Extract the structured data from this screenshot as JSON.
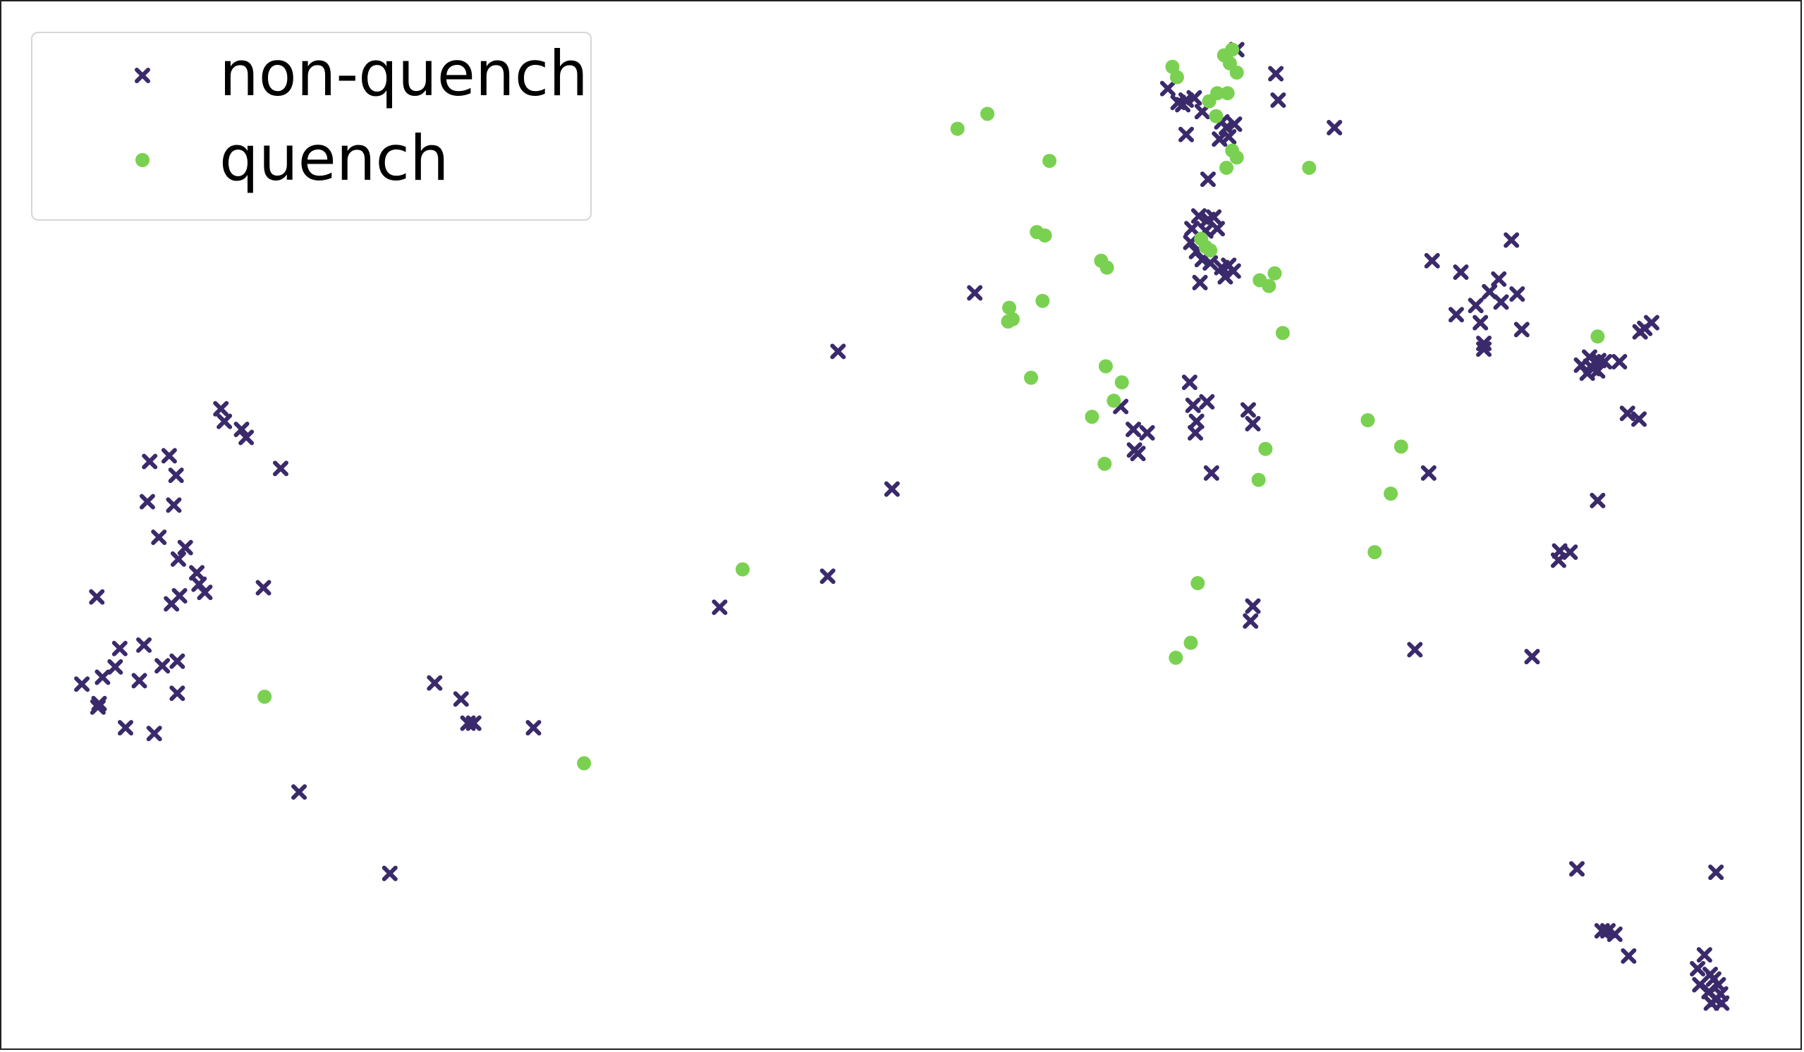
{
  "chart_data": {
    "type": "scatter",
    "title": "",
    "xlabel": "",
    "ylabel": "",
    "axes_visible": false,
    "grid": false,
    "legend_position": "top-left",
    "xlim": [
      0,
      1568
    ],
    "ylim": [
      0,
      915
    ],
    "y_inverted": true,
    "series": [
      {
        "name": "non-quench",
        "marker": "x",
        "color": "#3b2a6b",
        "points": [
          [
            191,
            355
          ],
          [
            194,
            366
          ],
          [
            209,
            373
          ],
          [
            213,
            380
          ],
          [
            243,
            407
          ],
          [
            129,
            401
          ],
          [
            146,
            396
          ],
          [
            152,
            413
          ],
          [
            127,
            436
          ],
          [
            150,
            439
          ],
          [
            137,
            467
          ],
          [
            160,
            476
          ],
          [
            154,
            486
          ],
          [
            170,
            498
          ],
          [
            172,
            508
          ],
          [
            177,
            515
          ],
          [
            155,
            518
          ],
          [
            148,
            525
          ],
          [
            228,
            511
          ],
          [
            83,
            519
          ],
          [
            103,
            564
          ],
          [
            124,
            561
          ],
          [
            153,
            575
          ],
          [
            140,
            579
          ],
          [
            99,
            580
          ],
          [
            88,
            589
          ],
          [
            120,
            592
          ],
          [
            70,
            595
          ],
          [
            153,
            603
          ],
          [
            85,
            612
          ],
          [
            84,
            615
          ],
          [
            108,
            633
          ],
          [
            133,
            638
          ],
          [
            259,
            689
          ],
          [
            338,
            760
          ],
          [
            377,
            594
          ],
          [
            400,
            608
          ],
          [
            406,
            629
          ],
          [
            411,
            629
          ],
          [
            463,
            633
          ],
          [
            625,
            528
          ],
          [
            719,
            501
          ],
          [
            775,
            425
          ],
          [
            728,
            305
          ],
          [
            847,
            254
          ],
          [
            1015,
            76
          ],
          [
            1024,
            88
          ],
          [
            1031,
            86
          ],
          [
            1038,
            84
          ],
          [
            1045,
            96
          ],
          [
            1028,
            90
          ],
          [
            1031,
            116
          ],
          [
            1062,
            105
          ],
          [
            1066,
            110
          ],
          [
            1073,
            107
          ],
          [
            1060,
            120
          ],
          [
            1068,
            118
          ],
          [
            1075,
            42
          ],
          [
            1109,
            63
          ],
          [
            1111,
            86
          ],
          [
            1160,
            110
          ],
          [
            1050,
            155
          ],
          [
            1042,
            187
          ],
          [
            1050,
            190
          ],
          [
            1055,
            188
          ],
          [
            1036,
            198
          ],
          [
            1048,
            200
          ],
          [
            1058,
            198
          ],
          [
            1035,
            210
          ],
          [
            1045,
            225
          ],
          [
            1040,
            218
          ],
          [
            1062,
            232
          ],
          [
            1068,
            230
          ],
          [
            1072,
            235
          ],
          [
            1065,
            240
          ],
          [
            1043,
            245
          ],
          [
            1052,
            228
          ],
          [
            1034,
            332
          ],
          [
            1037,
            352
          ],
          [
            1049,
            349
          ],
          [
            1040,
            366
          ],
          [
            1039,
            376
          ],
          [
            1085,
            356
          ],
          [
            1089,
            368
          ],
          [
            974,
            353
          ],
          [
            985,
            373
          ],
          [
            997,
            376
          ],
          [
            986,
            391
          ],
          [
            989,
            394
          ],
          [
            1053,
            411
          ],
          [
            1089,
            527
          ],
          [
            1087,
            540
          ],
          [
            1245,
            226
          ],
          [
            1270,
            236
          ],
          [
            1314,
            208
          ],
          [
            1303,
            242
          ],
          [
            1295,
            253
          ],
          [
            1319,
            255
          ],
          [
            1283,
            265
          ],
          [
            1305,
            262
          ],
          [
            1266,
            273
          ],
          [
            1287,
            280
          ],
          [
            1323,
            286
          ],
          [
            1290,
            298
          ],
          [
            1290,
            303
          ],
          [
            1242,
            411
          ],
          [
            1230,
            565
          ],
          [
            1332,
            571
          ],
          [
            1389,
            435
          ],
          [
            1356,
            479
          ],
          [
            1365,
            480
          ],
          [
            1355,
            487
          ],
          [
            1436,
            280
          ],
          [
            1430,
            285
          ],
          [
            1426,
            288
          ],
          [
            1375,
            317
          ],
          [
            1382,
            310
          ],
          [
            1390,
            313
          ],
          [
            1385,
            320
          ],
          [
            1380,
            324
          ],
          [
            1395,
            314
          ],
          [
            1408,
            314
          ],
          [
            1383,
            318
          ],
          [
            1389,
            322
          ],
          [
            1415,
            359
          ],
          [
            1425,
            364
          ],
          [
            1371,
            756
          ],
          [
            1492,
            759
          ],
          [
            1393,
            810
          ],
          [
            1398,
            810
          ],
          [
            1404,
            813
          ],
          [
            1416,
            832
          ],
          [
            1482,
            831
          ],
          [
            1476,
            843
          ],
          [
            1487,
            848
          ],
          [
            1490,
            852
          ],
          [
            1478,
            857
          ],
          [
            1494,
            857
          ],
          [
            1486,
            863
          ],
          [
            1496,
            865
          ],
          [
            1492,
            870
          ],
          [
            1488,
            873
          ],
          [
            1497,
            873
          ]
        ]
      },
      {
        "name": "quench",
        "marker": "o",
        "color": "#7ad151",
        "points": [
          [
            1019,
            57
          ],
          [
            1023,
            66
          ],
          [
            1064,
            47
          ],
          [
            1071,
            42
          ],
          [
            1069,
            54
          ],
          [
            1075,
            62
          ],
          [
            1058,
            80
          ],
          [
            1067,
            80
          ],
          [
            1051,
            87
          ],
          [
            1057,
            100
          ],
          [
            1071,
            130
          ],
          [
            1075,
            136
          ],
          [
            1066,
            145
          ],
          [
            832,
            111
          ],
          [
            858,
            98
          ],
          [
            912,
            139
          ],
          [
            1138,
            145
          ],
          [
            901,
            201
          ],
          [
            908,
            204
          ],
          [
            1044,
            207
          ],
          [
            1048,
            214
          ],
          [
            1052,
            217
          ],
          [
            957,
            226
          ],
          [
            962,
            232
          ],
          [
            1095,
            243
          ],
          [
            1108,
            237
          ],
          [
            1103,
            248
          ],
          [
            877,
            267
          ],
          [
            906,
            261
          ],
          [
            876,
            279
          ],
          [
            880,
            277
          ],
          [
            1115,
            289
          ],
          [
            1389,
            292
          ],
          [
            896,
            328
          ],
          [
            961,
            318
          ],
          [
            975,
            332
          ],
          [
            968,
            348
          ],
          [
            949,
            362
          ],
          [
            960,
            403
          ],
          [
            1189,
            365
          ],
          [
            1218,
            388
          ],
          [
            1100,
            390
          ],
          [
            1094,
            417
          ],
          [
            1209,
            429
          ],
          [
            1195,
            480
          ],
          [
            645,
            495
          ],
          [
            1041,
            507
          ],
          [
            1035,
            559
          ],
          [
            1022,
            572
          ],
          [
            229,
            606
          ],
          [
            507,
            664
          ]
        ]
      }
    ],
    "legend": [
      {
        "label": "non-quench",
        "marker": "x",
        "color": "#3b2a6b"
      },
      {
        "label": "quench",
        "marker": "o",
        "color": "#7ad151"
      }
    ]
  }
}
